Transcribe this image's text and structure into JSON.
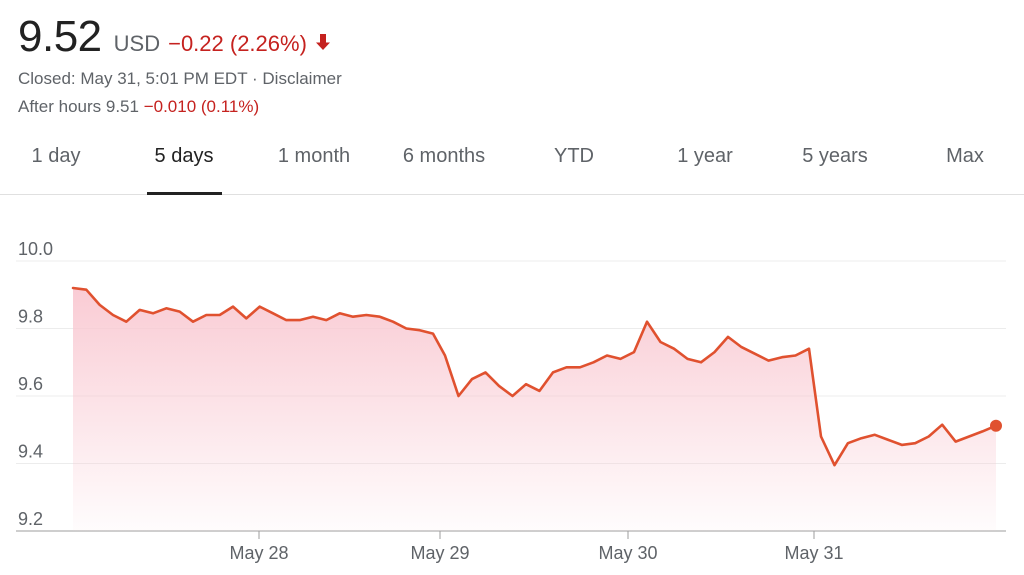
{
  "quote": {
    "price": "9.52",
    "currency": "USD",
    "change": "−0.22 (2.26%)",
    "direction_icon": "arrow-down-icon",
    "closed_text": "Closed: May 31, 5:01 PM EDT · Disclaimer",
    "after_hours_label": "After hours 9.51",
    "after_hours_change": "−0.010 (0.11%)",
    "negative_color": "#c5221f"
  },
  "tabs": [
    {
      "label": "1 day",
      "active": false
    },
    {
      "label": "5 days",
      "active": true
    },
    {
      "label": "1 month",
      "active": false
    },
    {
      "label": "6 months",
      "active": false
    },
    {
      "label": "YTD",
      "active": false
    },
    {
      "label": "1 year",
      "active": false
    },
    {
      "label": "5 years",
      "active": false
    },
    {
      "label": "Max",
      "active": false
    }
  ],
  "chart_data": {
    "type": "area",
    "line_color": "#e0512f",
    "fill_color": "#f9c9d2",
    "ylim": [
      9.2,
      10.0
    ],
    "yticks": [
      "10.0",
      "9.8",
      "9.6",
      "9.4",
      "9.2"
    ],
    "ytick_values": [
      10.0,
      9.8,
      9.6,
      9.4,
      9.2
    ],
    "xtick_labels": [
      "May 28",
      "May 29",
      "May 30",
      "May 31"
    ],
    "grid": true,
    "last_point_marker": true,
    "day_values": [
      [
        9.92,
        9.915,
        9.87,
        9.84,
        9.82,
        9.855,
        9.845,
        9.86,
        9.85,
        9.82,
        9.84,
        9.84,
        9.865,
        9.83,
        9.865,
        9.845,
        9.825,
        9.825,
        9.835,
        9.825,
        9.845,
        9.835,
        9.84,
        9.835,
        9.82,
        9.8,
        9.795,
        9.785
      ],
      [
        9.72,
        9.6,
        9.65,
        9.67,
        9.63,
        9.6,
        9.635,
        9.615,
        9.67,
        9.685,
        9.685,
        9.7,
        9.72,
        9.71,
        9.73
      ],
      [
        9.82,
        9.76,
        9.74,
        9.71,
        9.7,
        9.73,
        9.775,
        9.745,
        9.725,
        9.705,
        9.715,
        9.72,
        9.74
      ],
      [
        9.48,
        9.395,
        9.46,
        9.475,
        9.485,
        9.47,
        9.455,
        9.46,
        9.48,
        9.515,
        9.465,
        9.48,
        9.495,
        9.512
      ]
    ]
  }
}
